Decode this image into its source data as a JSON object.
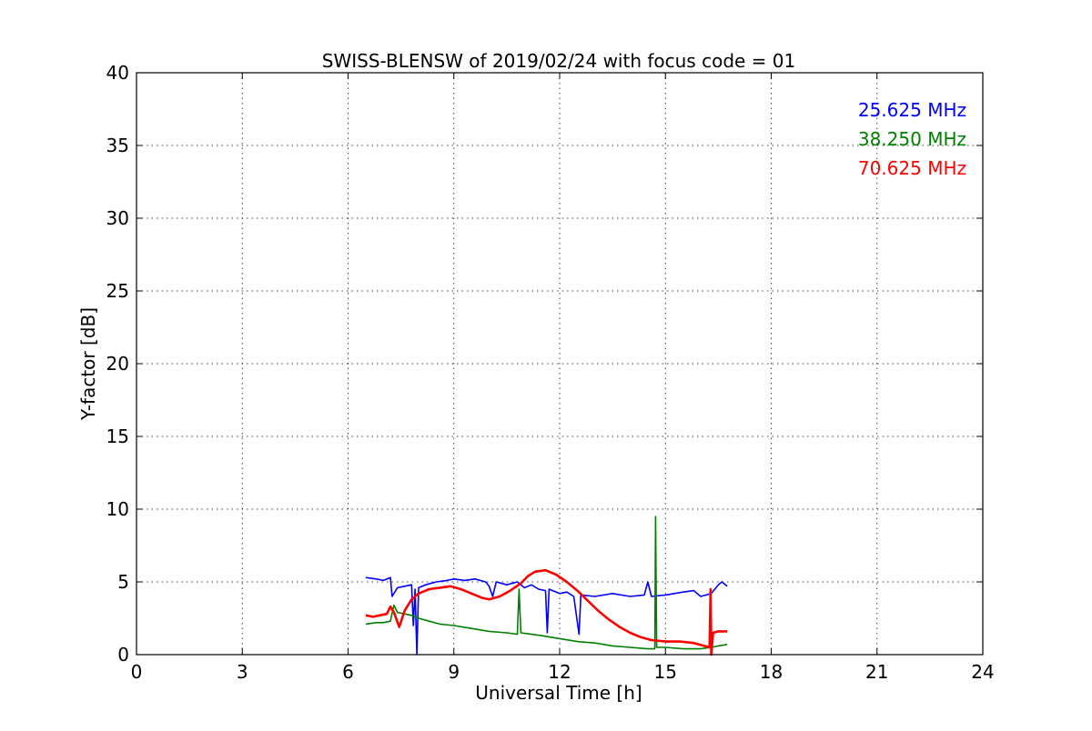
{
  "chart_data": {
    "type": "line",
    "title": "SWISS-BLENSW of 2019/02/24 with focus code = 01",
    "xlabel": "Universal Time [h]",
    "ylabel": "Y-factor [dB]",
    "xlim": [
      0,
      24
    ],
    "ylim": [
      0,
      40
    ],
    "xticks": [
      0,
      3,
      6,
      9,
      12,
      15,
      18,
      21,
      24
    ],
    "yticks": [
      0,
      5,
      10,
      15,
      20,
      25,
      30,
      35,
      40
    ],
    "grid": true,
    "legend_position": "top-right",
    "series": [
      {
        "name": "25.625 MHz",
        "color": "#0000ff",
        "points": [
          [
            6.5,
            5.3
          ],
          [
            6.8,
            5.2
          ],
          [
            7.0,
            5.1
          ],
          [
            7.2,
            5.3
          ],
          [
            7.25,
            4.0
          ],
          [
            7.4,
            4.6
          ],
          [
            7.6,
            4.7
          ],
          [
            7.8,
            4.8
          ],
          [
            7.85,
            2.0
          ],
          [
            7.9,
            4.5
          ],
          [
            7.95,
            0.0
          ],
          [
            8.0,
            4.6
          ],
          [
            8.2,
            4.8
          ],
          [
            8.5,
            5.0
          ],
          [
            8.8,
            5.1
          ],
          [
            9.0,
            5.2
          ],
          [
            9.3,
            5.1
          ],
          [
            9.6,
            5.2
          ],
          [
            9.9,
            5.0
          ],
          [
            10.0,
            4.7
          ],
          [
            10.1,
            4.0
          ],
          [
            10.2,
            5.0
          ],
          [
            10.5,
            4.8
          ],
          [
            10.8,
            5.0
          ],
          [
            11.0,
            4.6
          ],
          [
            11.2,
            4.8
          ],
          [
            11.4,
            4.5
          ],
          [
            11.6,
            4.4
          ],
          [
            11.65,
            1.5
          ],
          [
            11.7,
            4.5
          ],
          [
            12.0,
            4.2
          ],
          [
            12.2,
            4.3
          ],
          [
            12.4,
            4.0
          ],
          [
            12.55,
            1.4
          ],
          [
            12.6,
            4.1
          ],
          [
            13.0,
            4.0
          ],
          [
            13.5,
            4.2
          ],
          [
            14.0,
            4.0
          ],
          [
            14.4,
            4.1
          ],
          [
            14.5,
            5.0
          ],
          [
            14.6,
            4.0
          ],
          [
            15.0,
            4.1
          ],
          [
            15.5,
            4.3
          ],
          [
            15.8,
            4.4
          ],
          [
            16.0,
            4.0
          ],
          [
            16.3,
            4.2
          ],
          [
            16.5,
            4.8
          ],
          [
            16.6,
            5.0
          ],
          [
            16.75,
            4.7
          ]
        ]
      },
      {
        "name": "38.250 MHz",
        "color": "#008000",
        "points": [
          [
            6.5,
            2.1
          ],
          [
            6.8,
            2.2
          ],
          [
            7.0,
            2.2
          ],
          [
            7.2,
            2.3
          ],
          [
            7.3,
            3.4
          ],
          [
            7.4,
            2.9
          ],
          [
            7.6,
            2.8
          ],
          [
            7.8,
            2.7
          ],
          [
            8.0,
            2.5
          ],
          [
            8.3,
            2.3
          ],
          [
            8.6,
            2.1
          ],
          [
            9.0,
            2.0
          ],
          [
            9.5,
            1.8
          ],
          [
            10.0,
            1.6
          ],
          [
            10.5,
            1.5
          ],
          [
            10.8,
            1.4
          ],
          [
            10.85,
            4.5
          ],
          [
            10.9,
            1.5
          ],
          [
            11.2,
            1.4
          ],
          [
            11.5,
            1.3
          ],
          [
            12.0,
            1.1
          ],
          [
            12.5,
            0.9
          ],
          [
            13.0,
            0.8
          ],
          [
            13.5,
            0.6
          ],
          [
            14.0,
            0.5
          ],
          [
            14.5,
            0.4
          ],
          [
            14.7,
            0.4
          ],
          [
            14.72,
            9.5
          ],
          [
            14.75,
            0.5
          ],
          [
            15.0,
            0.5
          ],
          [
            15.5,
            0.4
          ],
          [
            16.0,
            0.4
          ],
          [
            16.3,
            0.5
          ],
          [
            16.5,
            0.6
          ],
          [
            16.75,
            0.7
          ]
        ]
      },
      {
        "name": "70.625 MHz",
        "color": "#ff0000",
        "points": [
          [
            6.5,
            2.7
          ],
          [
            6.7,
            2.6
          ],
          [
            6.9,
            2.7
          ],
          [
            7.1,
            2.8
          ],
          [
            7.2,
            3.3
          ],
          [
            7.3,
            2.9
          ],
          [
            7.45,
            1.9
          ],
          [
            7.6,
            3.0
          ],
          [
            7.8,
            3.8
          ],
          [
            8.0,
            4.2
          ],
          [
            8.3,
            4.5
          ],
          [
            8.6,
            4.6
          ],
          [
            8.9,
            4.7
          ],
          [
            9.2,
            4.5
          ],
          [
            9.5,
            4.2
          ],
          [
            9.8,
            3.9
          ],
          [
            10.0,
            3.8
          ],
          [
            10.3,
            4.0
          ],
          [
            10.6,
            4.4
          ],
          [
            10.9,
            4.9
          ],
          [
            11.1,
            5.4
          ],
          [
            11.3,
            5.7
          ],
          [
            11.6,
            5.8
          ],
          [
            11.9,
            5.5
          ],
          [
            12.2,
            5.0
          ],
          [
            12.5,
            4.4
          ],
          [
            12.8,
            3.7
          ],
          [
            13.1,
            3.0
          ],
          [
            13.4,
            2.4
          ],
          [
            13.7,
            1.9
          ],
          [
            14.0,
            1.5
          ],
          [
            14.3,
            1.2
          ],
          [
            14.6,
            1.0
          ],
          [
            15.0,
            0.9
          ],
          [
            15.4,
            0.9
          ],
          [
            15.8,
            0.8
          ],
          [
            16.1,
            0.6
          ],
          [
            16.25,
            0.5
          ],
          [
            16.28,
            4.5
          ],
          [
            16.3,
            0.0
          ],
          [
            16.35,
            1.5
          ],
          [
            16.5,
            1.6
          ],
          [
            16.75,
            1.6
          ]
        ]
      }
    ]
  }
}
